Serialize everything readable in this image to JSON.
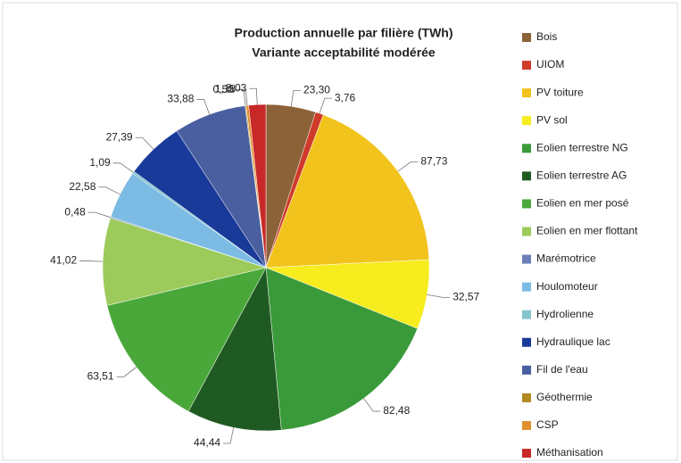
{
  "chart_data": {
    "type": "pie",
    "title": "Production annuelle par filière (TWh)",
    "subtitle": "Variante acceptabilité modérée",
    "categories": [
      "Bois",
      "UIOM",
      "PV toiture",
      "PV sol",
      "Eolien terrestre NG",
      "Eolien terrestre AG",
      "Eolien en mer posé",
      "Eolien en mer  flottant",
      "Marémotrice",
      "Houlomoteur",
      "Hydrolienne",
      "Hydraulique lac",
      "Fil de l'eau",
      "Géothermie",
      "CSP",
      "Méthanisation"
    ],
    "values": [
      23.3,
      3.76,
      87.73,
      32.57,
      82.48,
      44.44,
      63.51,
      41.02,
      0.48,
      22.58,
      1.09,
      27.39,
      33.88,
      0.5,
      1.18,
      8.03
    ],
    "value_labels": [
      "23,30",
      "3,76",
      "87,73",
      "32,57",
      "82,48",
      "44,44",
      "63,51",
      "41,02",
      "0,48",
      "22,58",
      "1,09",
      "27,39",
      "33,88",
      "0,50",
      "1,18",
      "8,03"
    ],
    "colors": [
      "#8c6239",
      "#d03a2a",
      "#f2c31c",
      "#f6ec1e",
      "#3a9a3a",
      "#1f5a22",
      "#4aa83a",
      "#9ccb5c",
      "#6a7fb8",
      "#7cbbe4",
      "#86c4cc",
      "#1a3a9a",
      "#4a5fa0",
      "#b08a20",
      "#e09030",
      "#c82828"
    ],
    "legend": "right"
  }
}
